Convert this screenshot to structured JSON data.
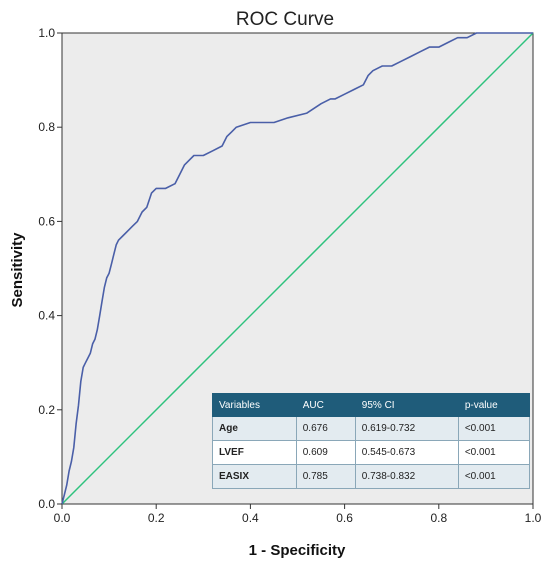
{
  "chart_data": {
    "type": "line",
    "title": "ROC Curve",
    "xlabel": "1 - Specificity",
    "ylabel": "Sensitivity",
    "xlim": [
      0,
      1
    ],
    "ylim": [
      0,
      1
    ],
    "x_ticks": [
      "0.0",
      "0.2",
      "0.4",
      "0.6",
      "0.8",
      "1.0"
    ],
    "y_ticks": [
      "0.0",
      "0.2",
      "0.4",
      "0.6",
      "0.8",
      "1.0"
    ],
    "grid": false,
    "background_color": "#ececec",
    "series": [
      {
        "color": "#4a5fa8",
        "points": [
          [
            0.0,
            0.0
          ],
          [
            0.005,
            0.02
          ],
          [
            0.01,
            0.04
          ],
          [
            0.015,
            0.07
          ],
          [
            0.02,
            0.09
          ],
          [
            0.025,
            0.12
          ],
          [
            0.03,
            0.17
          ],
          [
            0.035,
            0.21
          ],
          [
            0.04,
            0.26
          ],
          [
            0.045,
            0.29
          ],
          [
            0.05,
            0.3
          ],
          [
            0.055,
            0.31
          ],
          [
            0.06,
            0.32
          ],
          [
            0.065,
            0.34
          ],
          [
            0.07,
            0.35
          ],
          [
            0.075,
            0.37
          ],
          [
            0.08,
            0.4
          ],
          [
            0.085,
            0.43
          ],
          [
            0.09,
            0.46
          ],
          [
            0.095,
            0.48
          ],
          [
            0.1,
            0.49
          ],
          [
            0.105,
            0.51
          ],
          [
            0.11,
            0.53
          ],
          [
            0.115,
            0.55
          ],
          [
            0.12,
            0.56
          ],
          [
            0.13,
            0.57
          ],
          [
            0.14,
            0.58
          ],
          [
            0.15,
            0.59
          ],
          [
            0.16,
            0.6
          ],
          [
            0.17,
            0.62
          ],
          [
            0.18,
            0.63
          ],
          [
            0.19,
            0.66
          ],
          [
            0.2,
            0.67
          ],
          [
            0.22,
            0.67
          ],
          [
            0.24,
            0.68
          ],
          [
            0.25,
            0.7
          ],
          [
            0.26,
            0.72
          ],
          [
            0.27,
            0.73
          ],
          [
            0.28,
            0.74
          ],
          [
            0.3,
            0.74
          ],
          [
            0.32,
            0.75
          ],
          [
            0.34,
            0.76
          ],
          [
            0.35,
            0.78
          ],
          [
            0.36,
            0.79
          ],
          [
            0.37,
            0.8
          ],
          [
            0.4,
            0.81
          ],
          [
            0.45,
            0.81
          ],
          [
            0.48,
            0.82
          ],
          [
            0.52,
            0.83
          ],
          [
            0.55,
            0.85
          ],
          [
            0.57,
            0.86
          ],
          [
            0.58,
            0.86
          ],
          [
            0.6,
            0.87
          ],
          [
            0.62,
            0.88
          ],
          [
            0.64,
            0.89
          ],
          [
            0.65,
            0.91
          ],
          [
            0.66,
            0.92
          ],
          [
            0.68,
            0.93
          ],
          [
            0.7,
            0.93
          ],
          [
            0.72,
            0.94
          ],
          [
            0.74,
            0.95
          ],
          [
            0.76,
            0.96
          ],
          [
            0.78,
            0.97
          ],
          [
            0.8,
            0.97
          ],
          [
            0.82,
            0.98
          ],
          [
            0.84,
            0.99
          ],
          [
            0.86,
            0.99
          ],
          [
            0.88,
            1.0
          ],
          [
            0.92,
            1.0
          ],
          [
            1.0,
            1.0
          ]
        ]
      },
      {
        "color": "#2ec27e",
        "points": [
          [
            0,
            0
          ],
          [
            1,
            1
          ]
        ]
      }
    ],
    "table": {
      "header_color": "#1f5c7a",
      "headers": [
        "Variables",
        "AUC",
        "95% CI",
        "p-value"
      ],
      "rows": [
        [
          "Age",
          "0.676",
          "0.619-0.732",
          "<0.001"
        ],
        [
          "LVEF",
          "0.609",
          "0.545-0.673",
          "<0.001"
        ],
        [
          "EASIX",
          "0.785",
          "0.738-0.832",
          "<0.001"
        ]
      ]
    }
  }
}
